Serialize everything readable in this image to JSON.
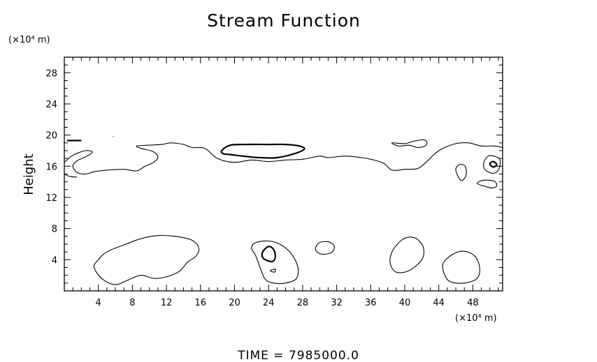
{
  "chart_data": {
    "type": "contour",
    "title": "Stream Function",
    "ylabel": "Height",
    "x_unit": "(×10⁴ m)",
    "y_unit": "(×10⁴ m)",
    "xlim": [
      0,
      51.5
    ],
    "ylim": [
      0,
      30
    ],
    "x_ticks": [
      4,
      8,
      12,
      16,
      20,
      24,
      28,
      32,
      36,
      40,
      44,
      48
    ],
    "y_ticks": [
      4,
      8,
      12,
      16,
      20,
      24,
      28
    ],
    "grid": false,
    "footer": "TIME  =  7985000.0",
    "contours": [
      {
        "level": "thin",
        "closed": false,
        "points": [
          [
            0,
            16.5
          ],
          [
            1,
            17.4
          ],
          [
            2.5,
            18
          ],
          [
            3.3,
            17.8
          ],
          [
            2.5,
            17.2
          ],
          [
            1.5,
            16.7
          ],
          [
            1,
            16
          ],
          [
            1.5,
            15.2
          ],
          [
            2.5,
            15
          ],
          [
            3.5,
            15.3
          ],
          [
            5,
            15.5
          ],
          [
            7,
            15.6
          ],
          [
            8.5,
            15.4
          ],
          [
            9.5,
            16
          ],
          [
            10.5,
            16.5
          ],
          [
            11,
            17.2
          ],
          [
            10.4,
            17.9
          ],
          [
            9,
            18.3
          ],
          [
            8.5,
            18.6
          ],
          [
            9.8,
            18.7
          ],
          [
            11.5,
            18.8
          ],
          [
            12.5,
            19
          ],
          [
            14,
            18.8
          ],
          [
            15,
            18.4
          ],
          [
            16.5,
            18.3
          ],
          [
            18,
            17
          ],
          [
            20,
            16.5
          ],
          [
            22,
            16.8
          ],
          [
            24,
            16.6
          ],
          [
            26,
            16.8
          ],
          [
            28,
            16.9
          ],
          [
            30,
            17.3
          ],
          [
            31,
            17.1
          ],
          [
            33,
            17.3
          ],
          [
            35,
            17.1
          ],
          [
            36,
            16.9
          ],
          [
            37.5,
            16.4
          ],
          [
            38.5,
            15.5
          ],
          [
            40,
            15.6
          ],
          [
            41.5,
            15.7
          ],
          [
            42.5,
            16.5
          ],
          [
            44,
            18
          ],
          [
            46,
            18.9
          ],
          [
            47.5,
            19
          ],
          [
            49,
            18.6
          ],
          [
            50.5,
            18.6
          ],
          [
            51.5,
            18.4
          ]
        ]
      },
      {
        "level": "thin",
        "closed": false,
        "points": [
          [
            0,
            15
          ],
          [
            0.6,
            14.7
          ],
          [
            1.5,
            14.6
          ]
        ]
      },
      {
        "level": "thin",
        "closed": true,
        "points": [
          [
            3.5,
            3
          ],
          [
            4.5,
            1.5
          ],
          [
            6,
            0.8
          ],
          [
            7.5,
            1.4
          ],
          [
            9,
            2
          ],
          [
            10.5,
            1.6
          ],
          [
            12,
            1.8
          ],
          [
            13.5,
            2.5
          ],
          [
            14.5,
            3.7
          ],
          [
            15.5,
            4.5
          ],
          [
            15.8,
            5.5
          ],
          [
            15,
            6.5
          ],
          [
            13,
            7
          ],
          [
            11,
            7.1
          ],
          [
            9,
            6.7
          ],
          [
            7,
            5.9
          ],
          [
            5,
            5
          ],
          [
            4,
            4
          ]
        ]
      },
      {
        "level": "thin",
        "closed": true,
        "points": [
          [
            22,
            5.5
          ],
          [
            22.5,
            6.2
          ],
          [
            24,
            6.4
          ],
          [
            25.3,
            6
          ],
          [
            26.5,
            5
          ],
          [
            27.2,
            3.8
          ],
          [
            27.5,
            2.6
          ],
          [
            27.2,
            1.5
          ],
          [
            26,
            1
          ],
          [
            24.6,
            1
          ],
          [
            23.6,
            1.5
          ],
          [
            23,
            3
          ],
          [
            22.5,
            4.5
          ]
        ]
      },
      {
        "level": "bold",
        "closed": true,
        "points": [
          [
            23.3,
            5
          ],
          [
            24,
            5.7
          ],
          [
            24.6,
            5.3
          ],
          [
            24.8,
            4.4
          ],
          [
            24.5,
            3.8
          ],
          [
            23.8,
            3.9
          ],
          [
            23.3,
            4.3
          ]
        ]
      },
      {
        "level": "thin",
        "closed": true,
        "points": [
          [
            24.2,
            2.6
          ],
          [
            24.8,
            2.8
          ],
          [
            24.7,
            2.4
          ]
        ]
      },
      {
        "level": "thin",
        "closed": true,
        "points": [
          [
            29.5,
            5.5
          ],
          [
            30,
            6.2
          ],
          [
            31,
            6.3
          ],
          [
            31.7,
            5.8
          ],
          [
            31.5,
            5
          ],
          [
            30.6,
            4.7
          ],
          [
            29.8,
            4.9
          ]
        ]
      },
      {
        "level": "thin",
        "closed": true,
        "points": [
          [
            38.5,
            5
          ],
          [
            39.5,
            6.4
          ],
          [
            40.5,
            6.9
          ],
          [
            41.5,
            6.6
          ],
          [
            42.2,
            5.5
          ],
          [
            42,
            4
          ],
          [
            40.5,
            2.6
          ],
          [
            39,
            2.4
          ],
          [
            38.3,
            3.5
          ]
        ]
      },
      {
        "level": "thin",
        "closed": true,
        "points": [
          [
            44.5,
            3.5
          ],
          [
            45.5,
            4.6
          ],
          [
            46.8,
            5.1
          ],
          [
            48.2,
            4.5
          ],
          [
            48.8,
            3
          ],
          [
            48.5,
            1.6
          ],
          [
            47,
            1
          ],
          [
            45.3,
            1.2
          ],
          [
            44.6,
            2.3
          ]
        ]
      },
      {
        "level": "bold",
        "closed": true,
        "points": [
          [
            18.5,
            18
          ],
          [
            19.5,
            18.7
          ],
          [
            21.5,
            18.8
          ],
          [
            24,
            18.8
          ],
          [
            26,
            18.8
          ],
          [
            27.6,
            18.6
          ],
          [
            28.2,
            18.2
          ],
          [
            27,
            17.6
          ],
          [
            25,
            17.1
          ],
          [
            23,
            17.1
          ],
          [
            21,
            17.3
          ],
          [
            19.5,
            17.5
          ],
          [
            18.7,
            17.6
          ]
        ]
      },
      {
        "level": "thin",
        "closed": true,
        "points": [
          [
            38.5,
            19
          ],
          [
            40,
            18.9
          ],
          [
            41,
            19.2
          ],
          [
            42.2,
            19.4
          ],
          [
            42.6,
            19.1
          ],
          [
            42.4,
            18.6
          ],
          [
            41.5,
            18.4
          ],
          [
            40.5,
            18.7
          ],
          [
            39.3,
            18.6
          ]
        ]
      },
      {
        "level": "thin",
        "closed": true,
        "points": [
          [
            46,
            15.5
          ],
          [
            46.6,
            14.2
          ],
          [
            47.2,
            14.8
          ],
          [
            47.1,
            16
          ],
          [
            46.4,
            16.2
          ]
        ]
      },
      {
        "level": "thin",
        "closed": true,
        "points": [
          [
            49.3,
            16.5
          ],
          [
            49.8,
            17.3
          ],
          [
            50.5,
            17.3
          ],
          [
            51.2,
            16.8
          ],
          [
            51,
            15.5
          ],
          [
            50.3,
            15.1
          ],
          [
            49.4,
            15.6
          ]
        ]
      },
      {
        "level": "bold",
        "closed": true,
        "points": [
          [
            50,
            16.3
          ],
          [
            50.4,
            16.6
          ],
          [
            50.8,
            16.2
          ],
          [
            50.4,
            15.9
          ]
        ]
      },
      {
        "level": "thin",
        "closed": true,
        "points": [
          [
            48.5,
            13.8
          ],
          [
            49.5,
            13.4
          ],
          [
            50.3,
            13.2
          ],
          [
            50.8,
            13.5
          ],
          [
            50.5,
            14.1
          ],
          [
            49.2,
            14.2
          ]
        ]
      },
      {
        "level": "bold",
        "closed": false,
        "points": [
          [
            0.3,
            19.3
          ],
          [
            2,
            19.3
          ]
        ]
      },
      {
        "level": "thin",
        "closed": false,
        "points": [
          [
            5.7,
            19.8
          ],
          [
            5.8,
            19.8
          ]
        ]
      }
    ]
  }
}
